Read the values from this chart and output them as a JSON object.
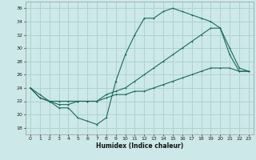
{
  "xlabel": "Humidex (Indice chaleur)",
  "xlim": [
    -0.5,
    23.5
  ],
  "ylim": [
    17,
    37
  ],
  "yticks": [
    18,
    20,
    22,
    24,
    26,
    28,
    30,
    32,
    34,
    36
  ],
  "xticks": [
    0,
    1,
    2,
    3,
    4,
    5,
    6,
    7,
    8,
    9,
    10,
    11,
    12,
    13,
    14,
    15,
    16,
    17,
    18,
    19,
    20,
    21,
    22,
    23
  ],
  "bg_color": "#cce8e8",
  "grid_color": "#aacfcf",
  "line_color": "#1a6b5a",
  "line1_x": [
    0,
    1,
    2,
    3,
    4,
    5,
    6,
    7,
    8,
    9,
    10,
    11,
    12,
    13,
    14,
    15,
    16,
    17,
    18,
    19,
    20,
    21,
    22,
    23
  ],
  "line1_y": [
    24,
    23,
    22,
    21,
    21,
    19.5,
    19,
    18.5,
    19.5,
    25,
    29,
    32,
    34.5,
    34.5,
    35.5,
    36,
    35.5,
    35,
    34.5,
    34,
    33,
    29,
    26.5,
    26.5
  ],
  "line2_x": [
    0,
    1,
    2,
    3,
    4,
    5,
    6,
    7,
    8,
    9,
    10,
    11,
    12,
    13,
    14,
    15,
    16,
    17,
    18,
    19,
    20,
    21,
    22,
    23
  ],
  "line2_y": [
    24,
    22.5,
    22,
    21.5,
    21.5,
    22,
    22,
    22,
    23,
    23.5,
    24,
    25,
    26,
    27,
    28,
    29,
    30,
    31,
    32,
    33,
    33,
    30,
    27,
    26.5
  ],
  "line3_x": [
    0,
    1,
    2,
    3,
    4,
    5,
    6,
    7,
    8,
    9,
    10,
    11,
    12,
    13,
    14,
    15,
    16,
    17,
    18,
    19,
    20,
    21,
    22,
    23
  ],
  "line3_y": [
    24,
    22.5,
    22,
    22,
    22,
    22,
    22,
    22,
    22.5,
    23,
    23,
    23.5,
    23.5,
    24,
    24.5,
    25,
    25.5,
    26,
    26.5,
    27,
    27,
    27,
    26.5,
    26.5
  ]
}
